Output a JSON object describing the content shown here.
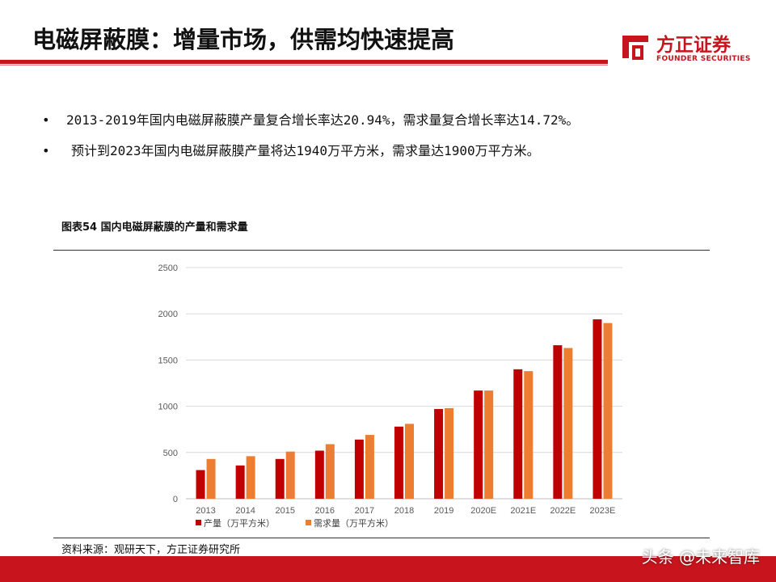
{
  "header": {
    "title": "电磁屏蔽膜：增量市场，供需均快速提高",
    "logo_cn": "方正证券",
    "logo_en": "FOUNDER SECURITIES"
  },
  "bullets": [
    "2013-2019年国内电磁屏蔽膜产量复合增长率达20.94%，需求量复合增长率达14.72%。",
    "预计到2023年国内电磁屏蔽膜产量将达1940万平方米，需求量达1900万平方米。"
  ],
  "bullet_symbol": "•",
  "figure": {
    "title": "图表54 国内电磁屏蔽膜的产量和需求量",
    "source": "资料来源：观研天下，方正证券研究所"
  },
  "watermark": "头条 @未来智库",
  "colors": {
    "brand_red": "#c8151d",
    "production": "#c00000",
    "demand": "#ed7d31"
  },
  "chart_data": {
    "type": "bar",
    "categories": [
      "2013",
      "2014",
      "2015",
      "2016",
      "2017",
      "2018",
      "2019",
      "2020E",
      "2021E",
      "2022E",
      "2023E"
    ],
    "series": [
      {
        "name": "产量（万平方米）",
        "values": [
          310,
          360,
          430,
          520,
          640,
          780,
          970,
          1170,
          1400,
          1660,
          1940
        ]
      },
      {
        "name": "需求量（万平方米）",
        "values": [
          430,
          460,
          510,
          590,
          690,
          810,
          980,
          1170,
          1380,
          1630,
          1900
        ]
      }
    ],
    "yticks": [
      "0",
      "500",
      "1000",
      "1500",
      "2000",
      "2500"
    ],
    "ylim": [
      0,
      2500
    ],
    "grid": true,
    "legend_position": "bottom"
  }
}
